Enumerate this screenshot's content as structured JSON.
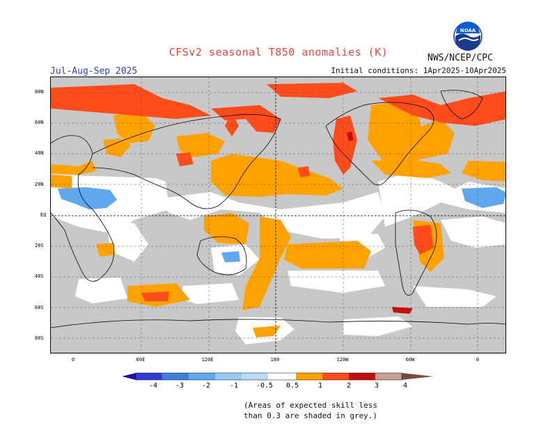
{
  "header": {
    "title": "CFSv2 seasonal T850 anomalies (K)",
    "season": "Jul-Aug-Sep 2025",
    "initial_conditions": "Initial conditions: 1Apr2025-10Apr2025",
    "agency": "NWS/NCEP/CPC",
    "logo_text": "NOAA"
  },
  "map": {
    "lat_labels": [
      "80N",
      "60N",
      "40N",
      "20N",
      "EQ",
      "20S",
      "40S",
      "60S",
      "80S"
    ],
    "lon_labels": [
      "0",
      "60E",
      "120E",
      "180",
      "120W",
      "60W",
      "0"
    ],
    "grey_meaning": "low skill"
  },
  "colorbar": {
    "labels": [
      "-4",
      "-3",
      "-2",
      "-1",
      "-0.5",
      "0.5",
      "1",
      "2",
      "3",
      "4"
    ],
    "colors": [
      "#1f0fa3",
      "#2f3fd6",
      "#3d7fe0",
      "#5fa8ee",
      "#97cbf7",
      "#ffffff",
      "#ffa200",
      "#ff4c1a",
      "#c40f0f",
      "#8a0a0a",
      "#c9a094",
      "#7a4a3a"
    ]
  },
  "footnote": {
    "line1": "(Areas of expected skill less",
    "line2": "than 0.3 are shaded in grey.)"
  }
}
